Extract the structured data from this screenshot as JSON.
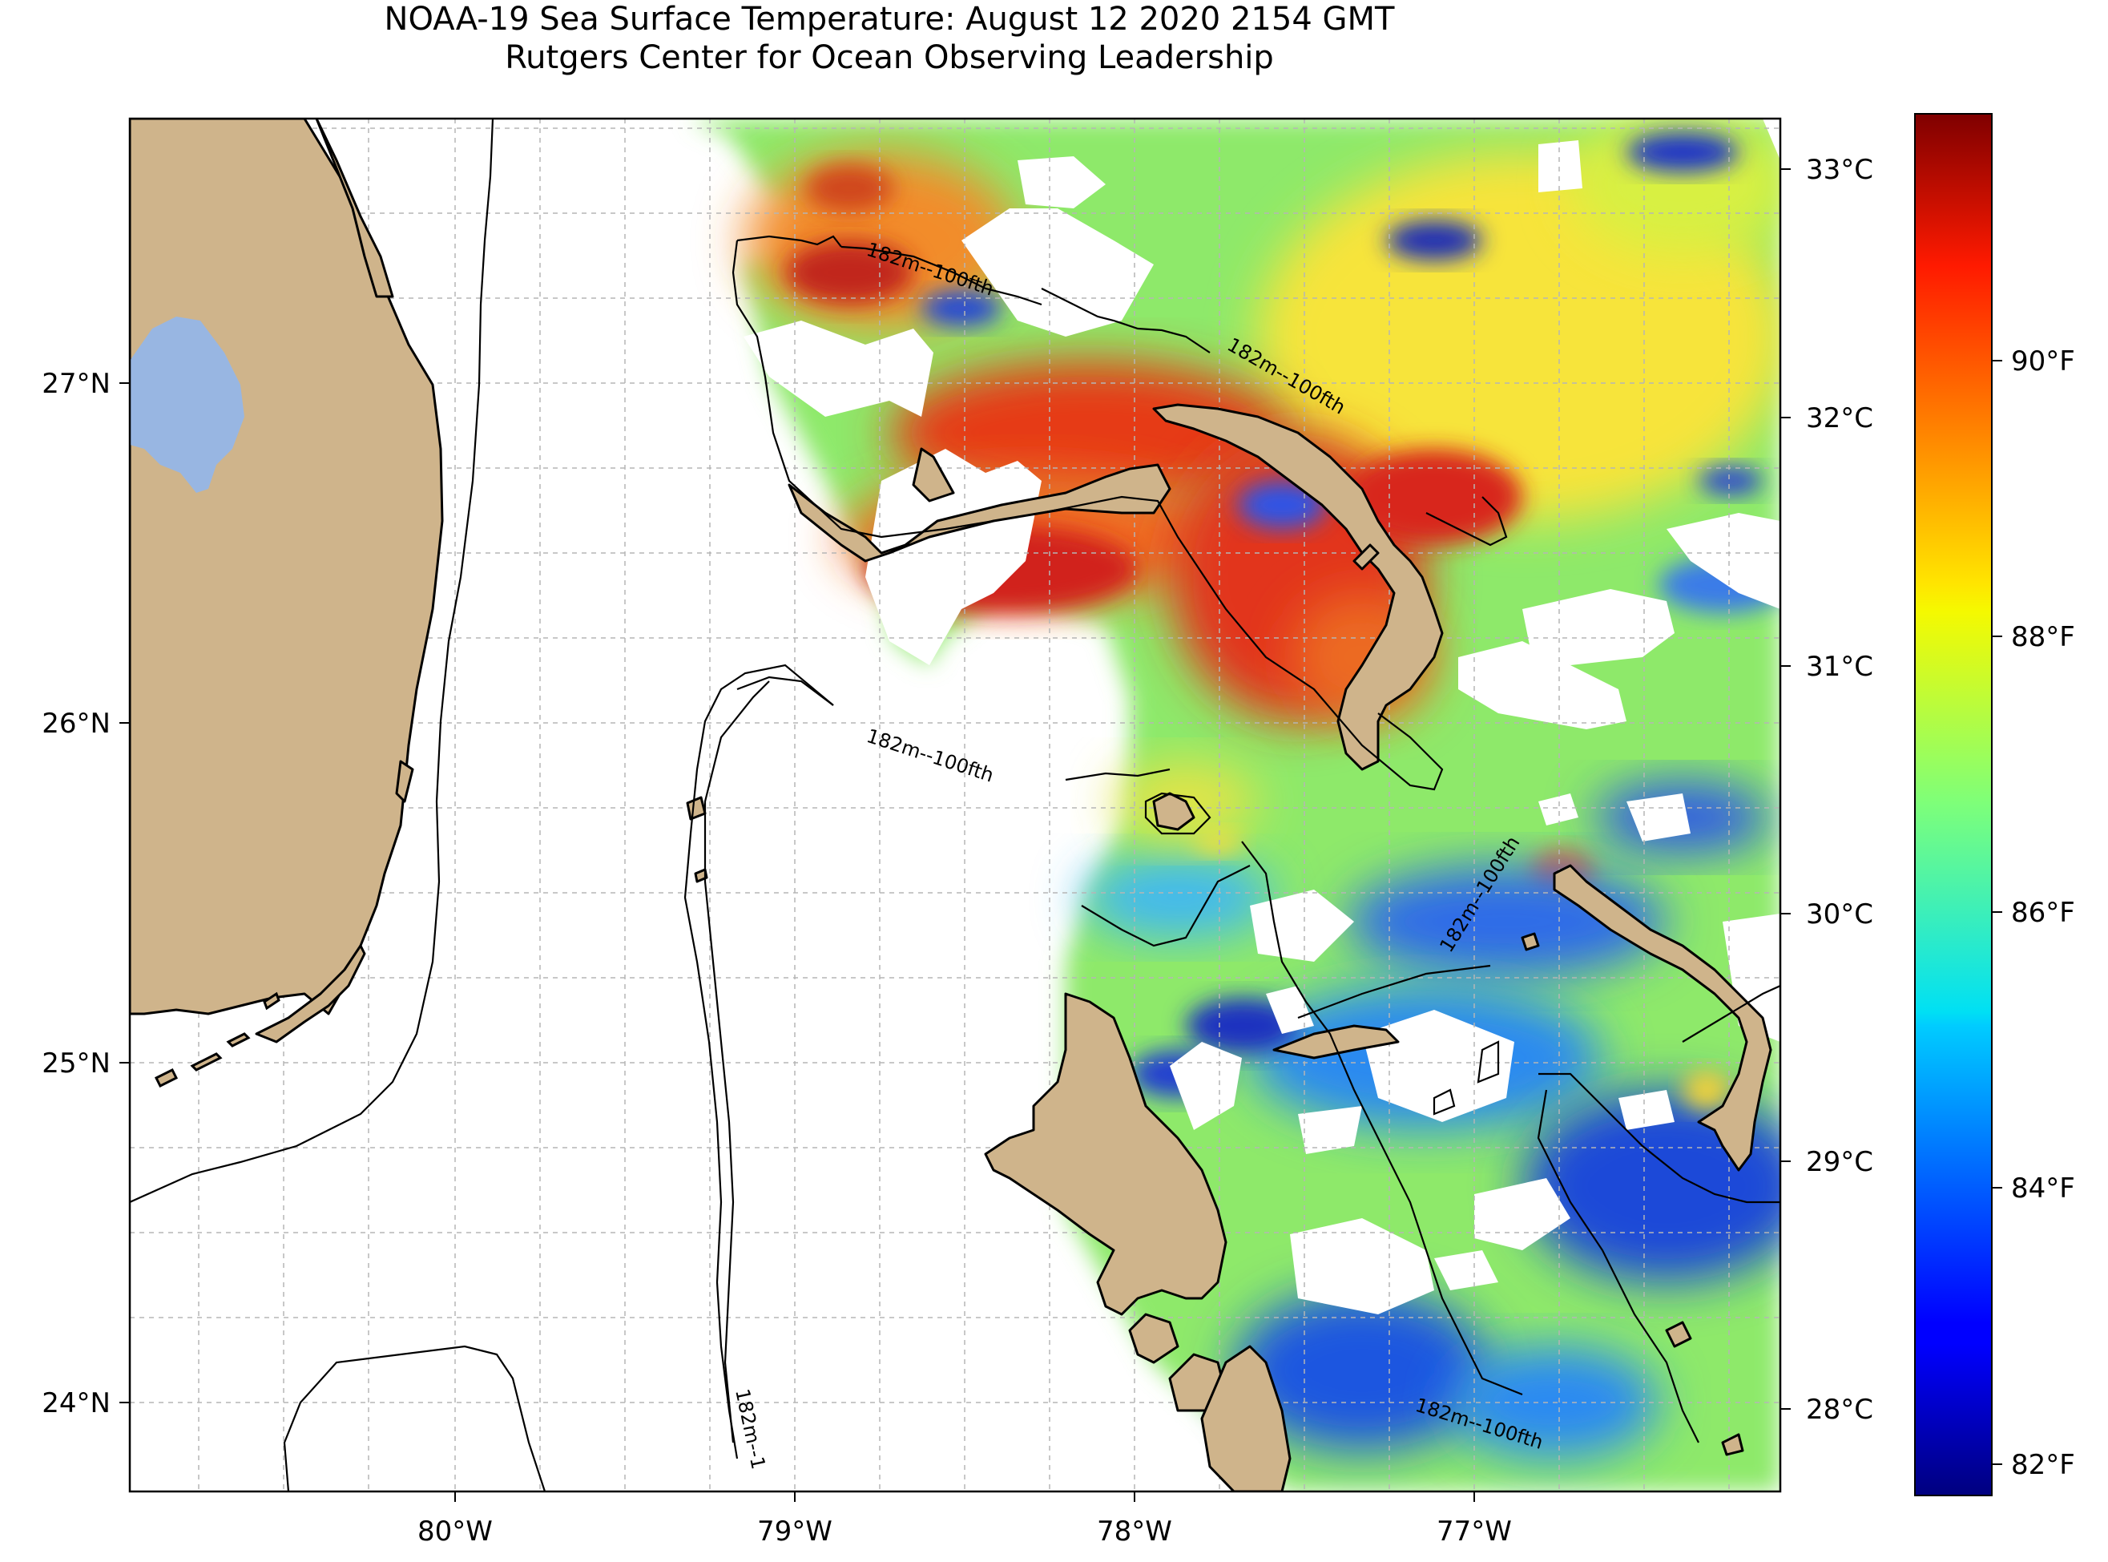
{
  "title": "NOAA-19 Sea Surface Temperature: August 12 2020 2154 GMT",
  "subtitle": "Rutgers Center for Ocean Observing Leadership",
  "map": {
    "lon_range": [
      -80.95,
      -76.15
    ],
    "lat_range": [
      23.75,
      27.78
    ],
    "lon_ticks": [
      "80°W",
      "79°W",
      "78°W",
      "77°W"
    ],
    "lat_ticks": [
      "24°N",
      "25°N",
      "26°N",
      "27°N"
    ],
    "grid": true,
    "land_color": "#cfb48b",
    "lake_color": "#98b6e2",
    "no_data_color": "#ffffff",
    "contour_label": "182m--100fth",
    "contour_label_short": "182m--1"
  },
  "colorbar": {
    "colormap": "jet",
    "range_celsius": [
      27.7,
      33.2
    ],
    "celsius_ticks": [
      "28°C",
      "29°C",
      "30°C",
      "31°C",
      "32°C",
      "33°C"
    ],
    "fahrenheit_ticks": [
      "82°F",
      "84°F",
      "86°F",
      "88°F",
      "90°F"
    ]
  }
}
